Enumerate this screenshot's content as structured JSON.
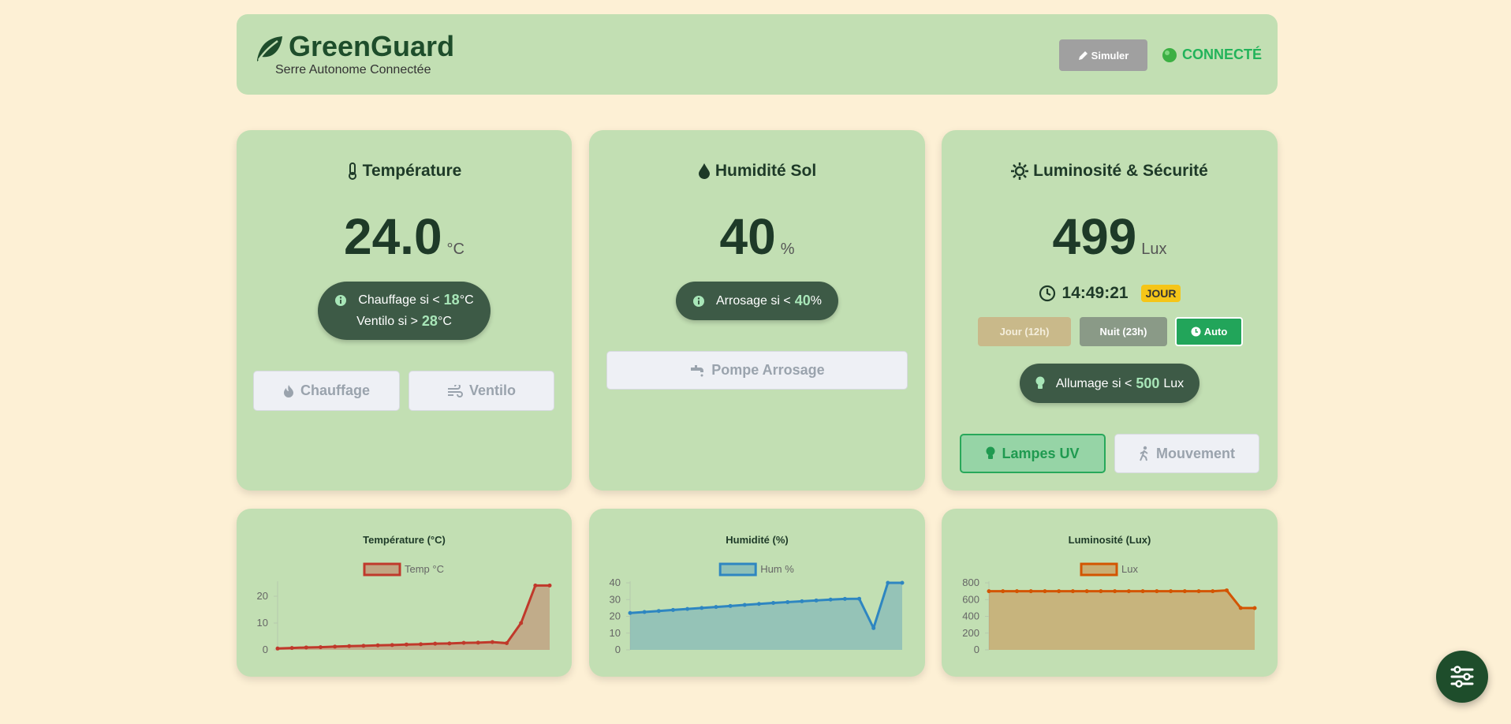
{
  "header": {
    "title": "GreenGuard",
    "subtitle": "Serre Autonome Connectée",
    "simulate_button": "Simuler",
    "status": "CONNECTÉ"
  },
  "cards": [
    {
      "title": "Température",
      "value": "24.0",
      "unit": "°C",
      "rules": [
        {
          "text": "Chauffage si <",
          "threshold": "18",
          "unit": "°C"
        },
        {
          "text": "Ventilo si >",
          "threshold": "28",
          "unit": "°C"
        }
      ],
      "buttons": [
        "Chauffage",
        "Ventilo"
      ]
    },
    {
      "title": "Humidité Sol",
      "value": "40",
      "unit": "%",
      "rules": [
        {
          "text": "Arrosage si <",
          "threshold": "40",
          "unit": "%"
        }
      ],
      "buttons": [
        "Pompe Arrosage"
      ]
    },
    {
      "title": "Luminosité & Sécurité",
      "value": "499",
      "unit": "Lux",
      "time": "14:49:21",
      "period": "JOUR",
      "modes": [
        "Jour (12h)",
        "Nuit (23h)",
        "Auto"
      ],
      "rules": [
        {
          "text": "Allumage si <",
          "threshold": "500",
          "unit": "Lux"
        }
      ],
      "buttons": [
        "Lampes UV",
        "Mouvement"
      ]
    }
  ],
  "chart_data": [
    {
      "type": "line",
      "title": "Température (°C)",
      "ylim": [
        0,
        25
      ],
      "yticks": [
        0,
        10,
        20
      ],
      "grid": false,
      "series": [
        {
          "name": "Temp °C",
          "color": "#c0392b",
          "values": [
            0.5,
            0.7,
            0.9,
            1.0,
            1.2,
            1.4,
            1.5,
            1.7,
            1.8,
            2.0,
            2.1,
            2.3,
            2.4,
            2.6,
            2.7,
            2.9,
            2.5,
            10,
            24,
            24
          ]
        }
      ]
    },
    {
      "type": "line",
      "title": "Humidité (%)",
      "ylim": [
        0,
        40
      ],
      "yticks": [
        0,
        10,
        20,
        30,
        40
      ],
      "grid": false,
      "series": [
        {
          "name": "Hum %",
          "color": "#2e86c1",
          "values": [
            22,
            22.6,
            23.2,
            23.8,
            24.4,
            25,
            25.6,
            26.2,
            26.8,
            27.4,
            28,
            28.5,
            29,
            29.5,
            30,
            30.4,
            30.5,
            13,
            40,
            40
          ]
        }
      ]
    },
    {
      "type": "line",
      "title": "Luminosité (Lux)",
      "ylim": [
        0,
        800
      ],
      "yticks": [
        0,
        200,
        400,
        600,
        800
      ],
      "grid": false,
      "series": [
        {
          "name": "Lux",
          "color": "#d35400",
          "values": [
            700,
            700,
            700,
            700,
            700,
            700,
            700,
            700,
            700,
            700,
            700,
            700,
            700,
            700,
            700,
            700,
            700,
            710,
            500,
            499
          ]
        }
      ]
    }
  ]
}
